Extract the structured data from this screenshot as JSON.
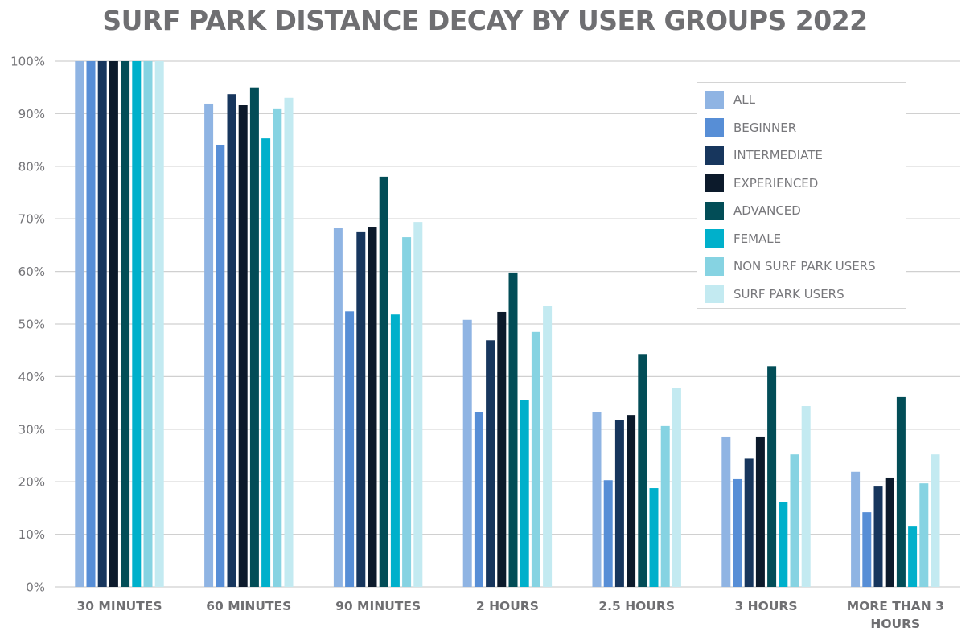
{
  "chart_data": {
    "type": "bar",
    "title": "SURF PARK DISTANCE DECAY BY USER GROUPS 2022",
    "xlabel": "",
    "ylabel": "",
    "ylim": [
      0,
      100
    ],
    "yticks": [
      "0%",
      "10%",
      "20%",
      "30%",
      "40%",
      "50%",
      "60%",
      "70%",
      "80%",
      "90%",
      "100%"
    ],
    "grid": true,
    "legend_position": "top-right",
    "categories": [
      "30 MINUTES",
      "60 MINUTES",
      "90 MINUTES",
      "2 HOURS",
      "2.5 HOURS",
      "3 HOURS",
      "MORE THAN 3 HOURS"
    ],
    "category_lines": [
      [
        "30 MINUTES"
      ],
      [
        "60 MINUTES"
      ],
      [
        "90 MINUTES"
      ],
      [
        "2 HOURS"
      ],
      [
        "2.5 HOURS"
      ],
      [
        "3 HOURS"
      ],
      [
        "MORE THAN 3",
        "HOURS"
      ]
    ],
    "series": [
      {
        "name": "ALL",
        "color": "#8fb4e3",
        "values": [
          100,
          91.9,
          68.3,
          50.8,
          33.3,
          28.6,
          21.9
        ]
      },
      {
        "name": "BEGINNER",
        "color": "#578ed6",
        "values": [
          100,
          84.1,
          52.4,
          33.3,
          20.3,
          20.5,
          14.2
        ]
      },
      {
        "name": "INTERMEDIATE",
        "color": "#17365d",
        "values": [
          100,
          93.7,
          67.6,
          46.9,
          31.8,
          24.4,
          19.1
        ]
      },
      {
        "name": "EXPERIENCED",
        "color": "#0c1a2b",
        "values": [
          100,
          91.6,
          68.5,
          52.3,
          32.7,
          28.6,
          20.8
        ]
      },
      {
        "name": "ADVANCED",
        "color": "#024d57",
        "values": [
          100,
          95.0,
          78.0,
          59.8,
          44.3,
          42.0,
          36.1
        ]
      },
      {
        "name": "FEMALE",
        "color": "#00b0cb",
        "values": [
          100,
          85.3,
          51.8,
          35.6,
          18.8,
          16.1,
          11.6
        ]
      },
      {
        "name": "NON SURF PARK USERS",
        "color": "#86d3e2",
        "values": [
          100,
          91.0,
          66.5,
          48.5,
          30.6,
          25.2,
          19.7
        ]
      },
      {
        "name": "SURF PARK USERS",
        "color": "#c3eaf1",
        "values": [
          100,
          93.0,
          69.4,
          53.4,
          37.8,
          34.4,
          25.2
        ]
      }
    ]
  }
}
